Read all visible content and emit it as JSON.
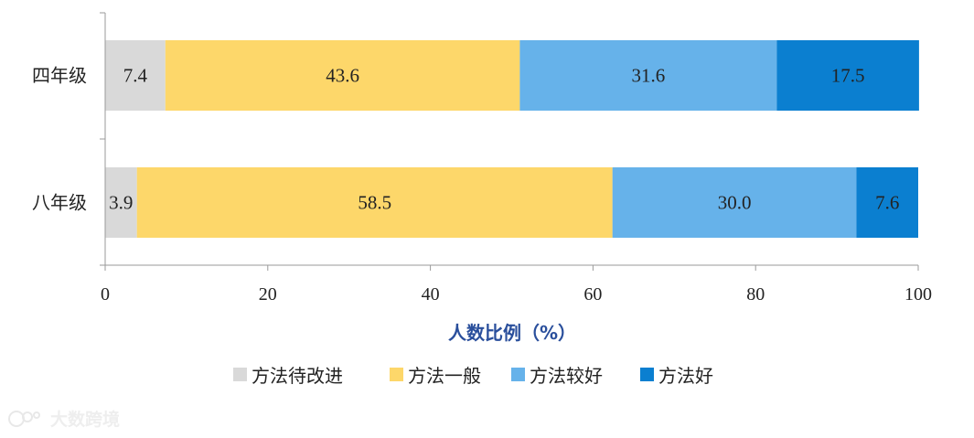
{
  "chart_data": {
    "type": "bar",
    "orientation": "horizontal",
    "stacked": true,
    "categories": [
      "四年级",
      "八年级"
    ],
    "series": [
      {
        "name": "方法待改进",
        "color": "#d9d9d9",
        "values": [
          7.4,
          3.9
        ]
      },
      {
        "name": "方法一般",
        "color": "#fdd76a",
        "values": [
          43.6,
          58.5
        ]
      },
      {
        "name": "方法较好",
        "color": "#66b2ea",
        "values": [
          31.6,
          30.0
        ]
      },
      {
        "name": "方法好",
        "color": "#0b7fd0",
        "values": [
          17.5,
          7.6
        ]
      }
    ],
    "xlabel": "人数比例（%）",
    "xlim": [
      0,
      100
    ],
    "xticks": [
      0,
      20,
      40,
      60,
      80,
      100
    ],
    "legend": "bottom",
    "grid": false
  },
  "watermark": {
    "text": "大数跨境"
  }
}
